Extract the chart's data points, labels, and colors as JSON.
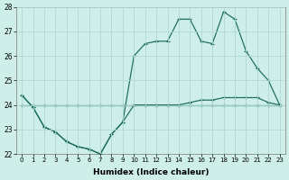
{
  "xlabel": "Humidex (Indice chaleur)",
  "xlim": [
    -0.5,
    23.5
  ],
  "ylim": [
    22,
    28
  ],
  "xticks": [
    0,
    1,
    2,
    3,
    4,
    5,
    6,
    7,
    8,
    9,
    10,
    11,
    12,
    13,
    14,
    15,
    16,
    17,
    18,
    19,
    20,
    21,
    22,
    23
  ],
  "yticks": [
    22,
    23,
    24,
    25,
    26,
    27,
    28
  ],
  "background_color": "#cdeee9",
  "grid_color": "#b0d8d0",
  "line_color": "#1a6b5a",
  "line1_x": [
    0,
    1,
    2,
    3,
    4,
    5,
    6,
    7,
    8,
    9,
    10,
    11,
    12,
    13,
    14,
    15,
    16,
    17,
    18,
    19,
    20,
    21,
    22,
    23
  ],
  "line1_y": [
    24.0,
    24.0,
    24.0,
    24.0,
    24.0,
    24.0,
    24.0,
    24.0,
    24.0,
    24.0,
    24.0,
    24.0,
    24.0,
    24.0,
    24.0,
    24.0,
    24.0,
    24.0,
    24.0,
    24.0,
    24.0,
    24.0,
    24.0,
    24.0
  ],
  "line2_x": [
    0,
    1,
    2,
    3,
    4,
    5,
    6,
    7,
    8,
    9,
    10,
    11,
    12,
    13,
    14,
    15,
    16,
    17,
    18,
    19,
    20,
    21,
    22,
    23
  ],
  "line2_y": [
    24.4,
    23.9,
    23.1,
    22.9,
    22.5,
    22.3,
    22.2,
    22.0,
    22.8,
    23.3,
    24.0,
    24.0,
    24.0,
    24.0,
    24.0,
    24.1,
    24.2,
    24.2,
    24.3,
    24.3,
    24.3,
    24.3,
    24.1,
    24.0
  ],
  "line3_x": [
    0,
    1,
    2,
    3,
    4,
    5,
    6,
    7,
    8,
    9,
    10,
    11,
    12,
    13,
    14,
    15,
    16,
    17,
    18,
    19,
    20,
    21,
    22,
    23
  ],
  "line3_y": [
    24.4,
    23.9,
    23.1,
    22.9,
    22.5,
    22.3,
    22.2,
    22.0,
    22.8,
    23.3,
    26.0,
    26.5,
    26.6,
    26.6,
    27.5,
    27.5,
    26.6,
    26.5,
    27.8,
    27.5,
    26.2,
    25.5,
    25.0,
    24.0
  ]
}
